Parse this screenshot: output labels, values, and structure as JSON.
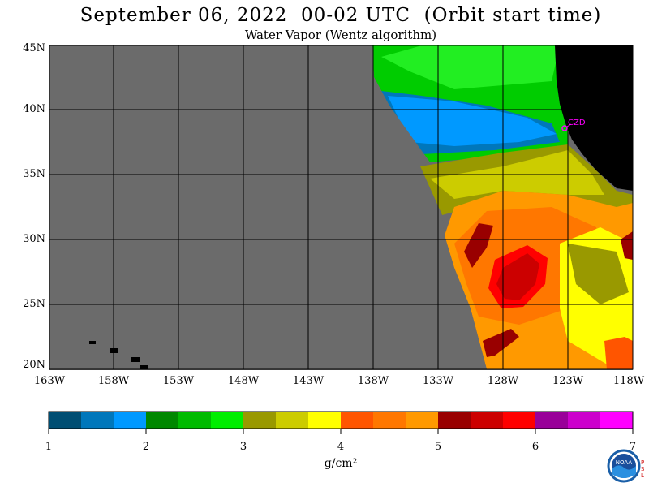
{
  "header": {
    "title": "September 06, 2022  00-02 UTC  (Orbit start time)",
    "subtitle": "Water Vapor (Wentz algorithm)"
  },
  "map": {
    "lat_labels": [
      "45N",
      "40N",
      "35N",
      "30N",
      "25N",
      "20N"
    ],
    "lon_labels": [
      "163W",
      "158W",
      "153W",
      "148W",
      "143W",
      "138W",
      "133W",
      "128W",
      "123W",
      "118W"
    ],
    "station_label": "CZD",
    "background_color": "#6b6b6b",
    "land_color": "#000000",
    "station_color": "#ff00ff"
  },
  "colorbar": {
    "colors": [
      "#004e73",
      "#0077bb",
      "#0099ff",
      "#008800",
      "#00bb00",
      "#00ee00",
      "#999900",
      "#cccc00",
      "#ffff00",
      "#ff5500",
      "#ff7700",
      "#ff9900",
      "#990000",
      "#cc0000",
      "#ff0000",
      "#990099",
      "#cc00cc",
      "#ff00ff"
    ],
    "tick_labels": [
      "1",
      "2",
      "3",
      "4",
      "5",
      "6",
      "7"
    ],
    "units": "g/cm²"
  },
  "logo": {
    "text": "NOAA",
    "side_text": "PSL"
  }
}
